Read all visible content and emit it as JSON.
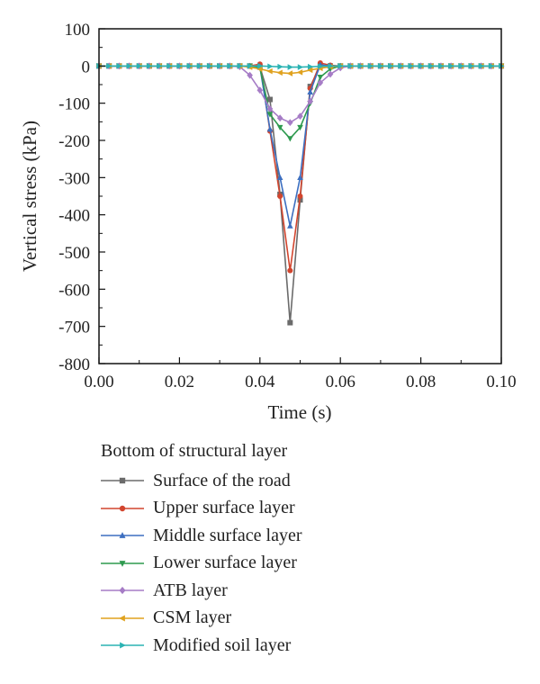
{
  "chart_data": {
    "type": "line",
    "title": "",
    "xlabel": "Time (s)",
    "ylabel": "Vertical stress (kPa)",
    "xlim": [
      0.0,
      0.1
    ],
    "ylim": [
      -800,
      100
    ],
    "xticks": [
      "0.00",
      "0.02",
      "0.04",
      "0.06",
      "0.08",
      "0.10"
    ],
    "yticks": [
      "100",
      "0",
      "-100",
      "-200",
      "-300",
      "-400",
      "-500",
      "-600",
      "-700",
      "-800"
    ],
    "grid": false,
    "legend_title": "Bottom of structural layer",
    "legend_position": "bottom-left, below plot",
    "x": [
      0.0,
      0.0025,
      0.005,
      0.0075,
      0.01,
      0.0125,
      0.015,
      0.0175,
      0.02,
      0.0225,
      0.025,
      0.0275,
      0.03,
      0.0325,
      0.035,
      0.0375,
      0.04,
      0.0425,
      0.045,
      0.0475,
      0.05,
      0.0525,
      0.055,
      0.0575,
      0.06,
      0.0625,
      0.065,
      0.0675,
      0.07,
      0.0725,
      0.075,
      0.0775,
      0.08,
      0.0825,
      0.085,
      0.0875,
      0.09,
      0.0925,
      0.095,
      0.0975,
      0.1
    ],
    "series": [
      {
        "name": "Surface of the road",
        "color": "#6b6b6b",
        "marker": "square",
        "values": [
          0,
          0,
          0,
          0,
          0,
          0,
          0,
          0,
          0,
          0,
          0,
          0,
          0,
          0,
          0,
          0,
          -3,
          -90,
          -345,
          -690,
          -360,
          -55,
          0,
          0,
          0,
          0,
          0,
          0,
          0,
          0,
          0,
          0,
          0,
          0,
          0,
          0,
          0,
          0,
          0,
          0,
          0
        ]
      },
      {
        "name": "Upper surface layer",
        "color": "#d2452e",
        "marker": "circle",
        "values": [
          0,
          0,
          0,
          0,
          0,
          0,
          0,
          0,
          0,
          0,
          0,
          0,
          0,
          0,
          0,
          0,
          5,
          -175,
          -350,
          -550,
          -350,
          -60,
          8,
          2,
          0,
          0,
          0,
          0,
          0,
          0,
          0,
          0,
          0,
          0,
          0,
          0,
          0,
          0,
          0,
          0,
          0
        ]
      },
      {
        "name": "Middle surface layer",
        "color": "#3d6fc0",
        "marker": "triangle-up",
        "values": [
          0,
          0,
          0,
          0,
          0,
          0,
          0,
          0,
          0,
          0,
          0,
          0,
          0,
          0,
          0,
          0,
          -2,
          -170,
          -300,
          -430,
          -300,
          -70,
          3,
          0,
          0,
          0,
          0,
          0,
          0,
          0,
          0,
          0,
          0,
          0,
          0,
          0,
          0,
          0,
          0,
          0,
          0
        ]
      },
      {
        "name": "Lower surface layer",
        "color": "#2e9a4f",
        "marker": "triangle-down",
        "values": [
          0,
          0,
          0,
          0,
          0,
          0,
          0,
          0,
          0,
          0,
          0,
          0,
          0,
          0,
          0,
          0,
          -5,
          -130,
          -165,
          -195,
          -165,
          -100,
          -30,
          -8,
          0,
          0,
          0,
          0,
          0,
          0,
          0,
          0,
          0,
          0,
          0,
          0,
          0,
          0,
          0,
          0,
          0
        ]
      },
      {
        "name": "ATB layer",
        "color": "#a67cc6",
        "marker": "diamond",
        "values": [
          0,
          0,
          0,
          0,
          0,
          0,
          0,
          0,
          0,
          0,
          0,
          0,
          0,
          0,
          -2,
          -25,
          -65,
          -115,
          -140,
          -152,
          -135,
          -95,
          -45,
          -22,
          -5,
          0,
          0,
          0,
          0,
          0,
          0,
          0,
          0,
          0,
          0,
          0,
          0,
          0,
          0,
          0,
          0
        ]
      },
      {
        "name": "CSM layer",
        "color": "#e0a21f",
        "marker": "triangle-left",
        "values": [
          0,
          0,
          0,
          0,
          0,
          0,
          0,
          0,
          0,
          0,
          0,
          0,
          0,
          0,
          0,
          -3,
          -8,
          -14,
          -18,
          -20,
          -17,
          -11,
          -6,
          -2,
          0,
          0,
          0,
          0,
          0,
          0,
          0,
          0,
          0,
          0,
          0,
          0,
          0,
          0,
          0,
          0,
          0
        ]
      },
      {
        "name": "Modified soil layer",
        "color": "#2bb3b3",
        "marker": "triangle-right",
        "values": [
          0,
          0,
          0,
          0,
          0,
          0,
          0,
          0,
          0,
          0,
          0,
          0,
          0,
          0,
          0,
          0,
          0,
          -1,
          -2,
          -3,
          -3,
          -2,
          -1,
          0,
          0,
          0,
          0,
          0,
          0,
          0,
          0,
          0,
          0,
          0,
          0,
          0,
          0,
          0,
          0,
          0,
          0
        ]
      }
    ]
  }
}
